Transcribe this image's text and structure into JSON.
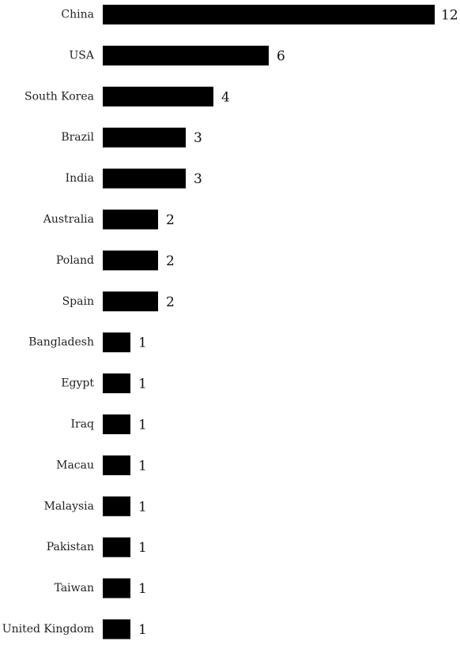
{
  "chart_data": {
    "type": "bar",
    "orientation": "horizontal",
    "categories": [
      "China",
      "USA",
      "South Korea",
      "Brazil",
      "India",
      "Australia",
      "Poland",
      "Spain",
      "Bangladesh",
      "Egypt",
      "Iraq",
      "Macau",
      "Malaysia",
      "Pakistan",
      "Taiwan",
      "United Kingdom"
    ],
    "values": [
      12,
      6,
      4,
      3,
      3,
      2,
      2,
      2,
      1,
      1,
      1,
      1,
      1,
      1,
      1,
      1
    ],
    "title": "",
    "xlabel": "",
    "ylabel": "",
    "xlim": [
      0,
      12
    ],
    "grid": false,
    "legend": "none",
    "bar_color": "#000000"
  }
}
